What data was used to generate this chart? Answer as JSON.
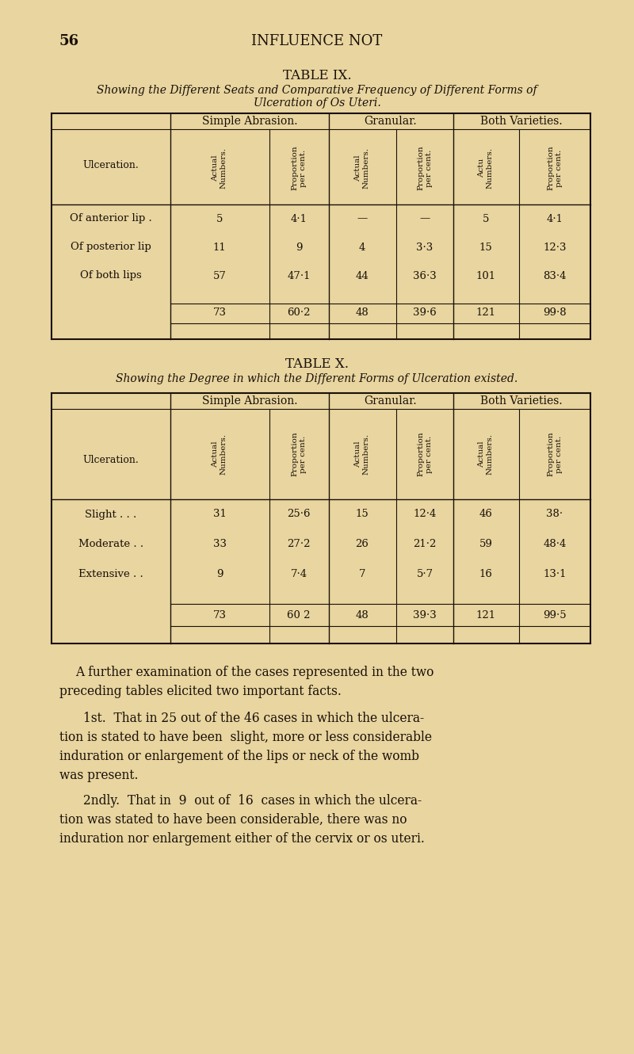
{
  "bg_color": "#e8d5a0",
  "text_color": "#1a1008",
  "page_number": "56",
  "page_header": "INFLUENCE NOT",
  "table9_title": "TABLE IX.",
  "table9_subtitle_line1": "Showing the Different Seats and Comparative Frequency of Different Forms of",
  "table9_subtitle_line2": "Ulceration of Os Uteri.",
  "table9_col_headers": [
    "Simple Abrasion.",
    "Granular.",
    "Both Varieties."
  ],
  "table9_sub_headers": [
    "Actual\nNumbers.",
    "Proportion\nper cent.",
    "Actual\nNumbers.",
    "Proportion\nper cent.",
    "Actu\nNumbers.",
    "Proportion\nper cent."
  ],
  "table9_row_label": "Ulceration.",
  "table9_rows": [
    [
      "Of anterior lip .",
      "5",
      "4·1",
      "—",
      "—",
      "5",
      "4·1"
    ],
    [
      "Of posterior lip",
      "11",
      "9",
      "4",
      "3·3",
      "15",
      "12·3"
    ],
    [
      "Of both lips",
      "57",
      "47·1",
      "44",
      "36·3",
      "101",
      "83·4"
    ]
  ],
  "table9_totals": [
    "73",
    "60·2",
    "48",
    "39·6",
    "121",
    "99·8"
  ],
  "table10_title": "TABLE X.",
  "table10_subtitle": "Showing the Degree in which the Different Forms of Ulceration existed.",
  "table10_col_headers": [
    "Simple Abrasion.",
    "Granular.",
    "Both Varieties."
  ],
  "table10_sub_headers": [
    "Actual\nNumbers.",
    "Proportion\nper cent.",
    "Actual\nNumbers.",
    "Proportion\nper cent.",
    "Actual\nNumbers.",
    "Proportion\nper cent."
  ],
  "table10_row_label": "Ulceration.",
  "table10_rows": [
    [
      "Slight . . .",
      "31",
      "25·6",
      "15",
      "12·4",
      "46",
      "38·"
    ],
    [
      "Moderate . .",
      "33",
      "27·2",
      "26",
      "21·2",
      "59",
      "48·4"
    ],
    [
      "Extensive . .",
      "9",
      "7·4",
      "7",
      "5·7",
      "16",
      "13·1"
    ]
  ],
  "table10_totals": [
    "73",
    "60 2",
    "48",
    "39·3",
    "121",
    "99·5"
  ],
  "para1_indent": "A further examination of the cases represented in the two",
  "para1_cont": "preceding tables elicited two important facts.",
  "para2_indent": "1st.  That in 25 out of the 46 cases in which the ulcera-",
  "para2_lines": [
    "tion is stated to have been  slight, more or less considerable",
    "induration or enlargement of the lips or neck of the womb",
    "was present."
  ],
  "para3_indent": "2ndly.  That in  9  out of  16  cases in which the ulcera-",
  "para3_lines": [
    "tion was stated to have been considerable, there was no",
    "induration nor enlargement either of the cervix or os uteri."
  ]
}
